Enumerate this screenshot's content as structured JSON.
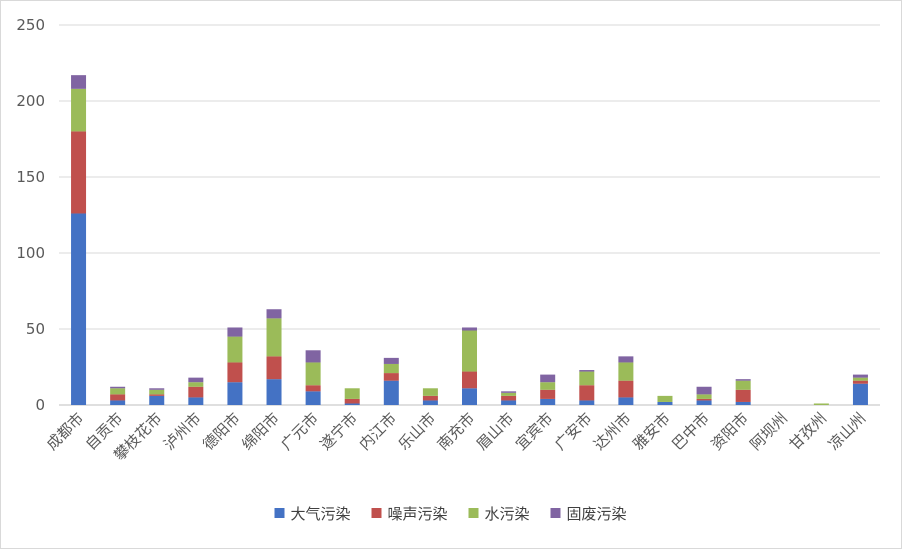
{
  "chart_data": {
    "type": "bar",
    "stacked": true,
    "categories": [
      "成都市",
      "自贡市",
      "攀枝花市",
      "泸州市",
      "德阳市",
      "绵阳市",
      "广元市",
      "遂宁市",
      "内江市",
      "乐山市",
      "南充市",
      "眉山市",
      "宜宾市",
      "广安市",
      "达州市",
      "雅安市",
      "巴中市",
      "资阳市",
      "阿坝州",
      "甘孜州",
      "凉山州"
    ],
    "series": [
      {
        "name": "大气污染",
        "color": "#4472c4",
        "values": [
          126,
          3,
          6,
          5,
          15,
          17,
          9,
          1,
          16,
          3,
          11,
          3,
          4,
          3,
          5,
          2,
          3,
          2,
          0,
          0,
          14
        ]
      },
      {
        "name": "噪声污染",
        "color": "#c0504d",
        "values": [
          54,
          4,
          1,
          7,
          13,
          15,
          4,
          3,
          5,
          3,
          11,
          3,
          6,
          10,
          11,
          0,
          1,
          8,
          0,
          0,
          2
        ]
      },
      {
        "name": "水污染",
        "color": "#9bbb59",
        "values": [
          28,
          4,
          3,
          3,
          17,
          25,
          15,
          7,
          6,
          5,
          27,
          2,
          5,
          9,
          12,
          4,
          3,
          6,
          0,
          1,
          2
        ]
      },
      {
        "name": "固废污染",
        "color": "#8064a2",
        "values": [
          9,
          1,
          1,
          3,
          6,
          6,
          8,
          0,
          4,
          0,
          2,
          1,
          5,
          1,
          4,
          0,
          5,
          1,
          0,
          0,
          2
        ]
      }
    ],
    "ylim": [
      0,
      250
    ],
    "yticks": [
      0,
      50,
      100,
      150,
      200,
      250
    ],
    "grid": true,
    "legend": "bottom"
  }
}
